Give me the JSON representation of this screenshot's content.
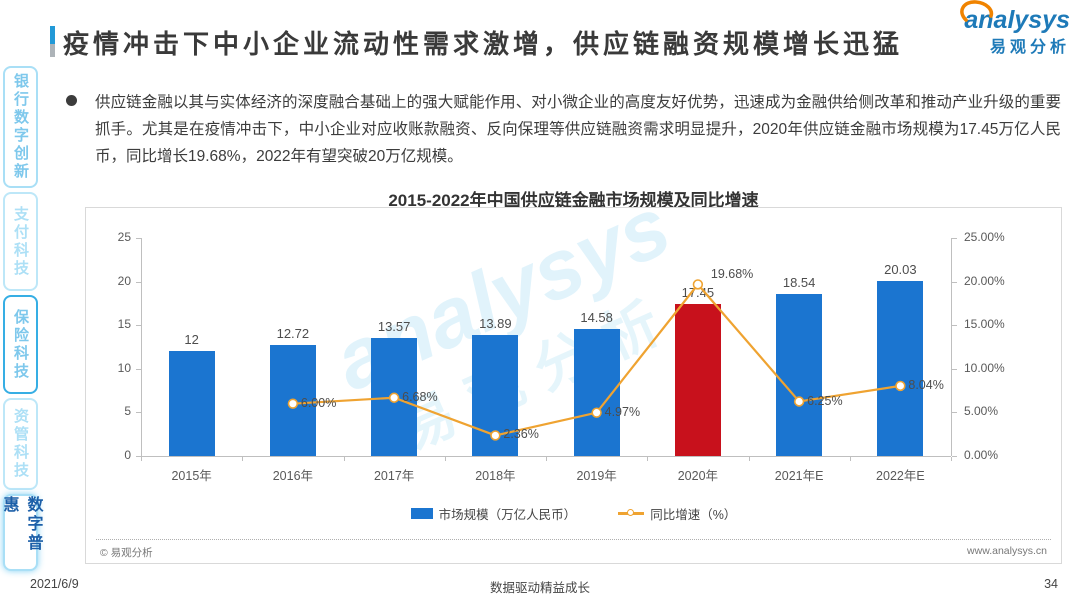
{
  "header": {
    "title": "疫情冲击下中小企业流动性需求激增，供应链融资规模增长迅猛",
    "logo_en": "analysys",
    "logo_cn": "易观分析"
  },
  "sidebar": {
    "items": [
      {
        "label": "银行数字创新"
      },
      {
        "label": "支付科技"
      },
      {
        "label": "保险科技"
      },
      {
        "label": "资管科技"
      },
      {
        "label": "数字普惠"
      }
    ]
  },
  "body": {
    "bullet_text": "供应链金融以其与实体经济的深度融合基础上的强大赋能作用、对小微企业的高度友好优势，迅速成为金融供给侧改革和推动产业升级的重要抓手。尤其是在疫情冲击下，中小企业对应收账款融资、反向保理等供应链融资需求明显提升，2020年供应链金融市场规模为17.45万亿人民币，同比增长19.68%，2022年有望突破20万亿规模。"
  },
  "chart_data": {
    "type": "bar+line",
    "title": "2015-2022年中国供应链金融市场规模及同比增速",
    "categories": [
      "2015年",
      "2016年",
      "2017年",
      "2018年",
      "2019年",
      "2020年",
      "2021年E",
      "2022年E"
    ],
    "series": [
      {
        "name": "市场规模（万亿人民币）",
        "type": "bar",
        "axis": "left",
        "values": [
          12,
          12.72,
          13.57,
          13.89,
          14.58,
          17.45,
          18.54,
          20.03
        ],
        "labels": [
          "12",
          "12.72",
          "13.57",
          "13.89",
          "14.58",
          "17.45",
          "18.54",
          "20.03"
        ]
      },
      {
        "name": "同比增速（%）",
        "type": "line",
        "axis": "right",
        "values": [
          null,
          6.0,
          6.68,
          2.36,
          4.97,
          19.68,
          6.25,
          8.04
        ],
        "labels": [
          "",
          "6.00%",
          "6.68%",
          "2.36%",
          "4.97%",
          "19.68%",
          "6.25%",
          "8.04%"
        ]
      }
    ],
    "left_axis": {
      "min": 0,
      "max": 25,
      "ticks": [
        "0",
        "5",
        "10",
        "15",
        "20",
        "25"
      ]
    },
    "right_axis": {
      "min": 0,
      "max": 25,
      "ticks": [
        "0.00%",
        "5.00%",
        "10.00%",
        "15.00%",
        "20.00%",
        "25.00%"
      ]
    },
    "highlight_index": 5,
    "colors": {
      "bar": "#1B75D0",
      "bar_highlight": "#C8111C",
      "line": "#EFA331"
    },
    "grid": false,
    "legend_position": "bottom",
    "watermark_en": "analysys",
    "watermark_cn": "易观分析",
    "source_note": "© 易观分析",
    "website": "www.analysys.cn"
  },
  "footer": {
    "date": "2021/6/9",
    "slogan": "数据驱动精益成长",
    "page": "34"
  }
}
